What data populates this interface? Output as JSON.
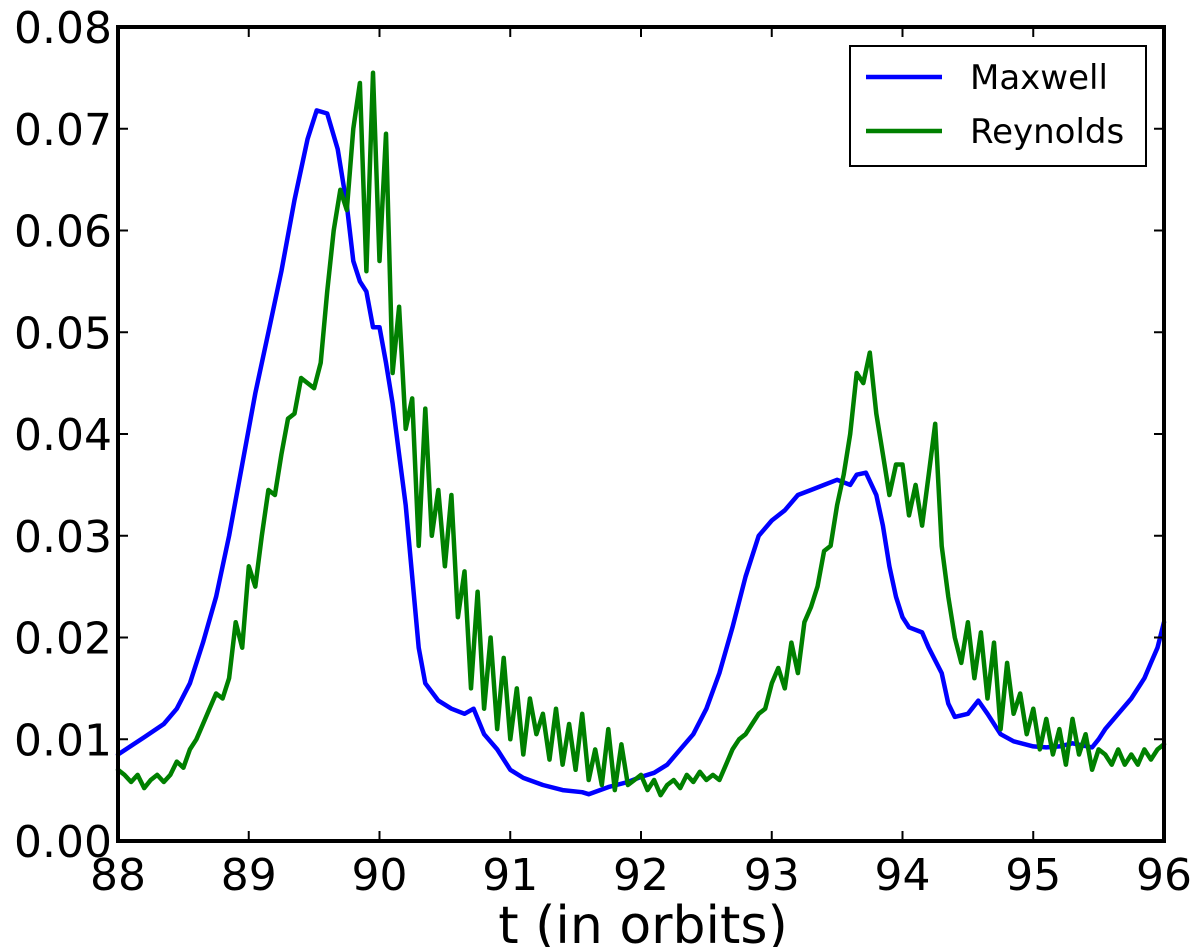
{
  "chart_data": {
    "type": "line",
    "title": "",
    "xlabel": "t (in orbits)",
    "ylabel": "",
    "xlim": [
      88,
      96
    ],
    "ylim": [
      0.0,
      0.08
    ],
    "xticks": [
      "88",
      "89",
      "90",
      "91",
      "92",
      "93",
      "94",
      "95",
      "96"
    ],
    "yticks": [
      "0.00",
      "0.01",
      "0.02",
      "0.03",
      "0.04",
      "0.05",
      "0.06",
      "0.07",
      "0.08"
    ],
    "grid": false,
    "legend_position": "top-right",
    "series": [
      {
        "name": "Maxwell",
        "color": "#0000ff",
        "points": [
          [
            88.0,
            0.0085
          ],
          [
            88.2,
            0.0102
          ],
          [
            88.35,
            0.0115
          ],
          [
            88.45,
            0.013
          ],
          [
            88.55,
            0.0155
          ],
          [
            88.65,
            0.0195
          ],
          [
            88.75,
            0.024
          ],
          [
            88.85,
            0.03
          ],
          [
            88.95,
            0.037
          ],
          [
            89.05,
            0.044
          ],
          [
            89.15,
            0.05
          ],
          [
            89.25,
            0.056
          ],
          [
            89.35,
            0.063
          ],
          [
            89.45,
            0.069
          ],
          [
            89.52,
            0.0718
          ],
          [
            89.6,
            0.0715
          ],
          [
            89.68,
            0.068
          ],
          [
            89.75,
            0.0625
          ],
          [
            89.8,
            0.057
          ],
          [
            89.85,
            0.055
          ],
          [
            89.9,
            0.054
          ],
          [
            89.95,
            0.0505
          ],
          [
            90.0,
            0.0505
          ],
          [
            90.05,
            0.047
          ],
          [
            90.1,
            0.043
          ],
          [
            90.15,
            0.038
          ],
          [
            90.2,
            0.033
          ],
          [
            90.25,
            0.026
          ],
          [
            90.3,
            0.019
          ],
          [
            90.35,
            0.0155
          ],
          [
            90.45,
            0.0138
          ],
          [
            90.55,
            0.013
          ],
          [
            90.65,
            0.0125
          ],
          [
            90.72,
            0.013
          ],
          [
            90.8,
            0.0105
          ],
          [
            90.9,
            0.009
          ],
          [
            91.0,
            0.007
          ],
          [
            91.1,
            0.0062
          ],
          [
            91.25,
            0.0055
          ],
          [
            91.4,
            0.005
          ],
          [
            91.55,
            0.0048
          ],
          [
            91.6,
            0.0046
          ],
          [
            91.75,
            0.0053
          ],
          [
            91.9,
            0.0058
          ],
          [
            92.0,
            0.0063
          ],
          [
            92.1,
            0.0067
          ],
          [
            92.2,
            0.0075
          ],
          [
            92.3,
            0.009
          ],
          [
            92.4,
            0.0105
          ],
          [
            92.5,
            0.013
          ],
          [
            92.6,
            0.0165
          ],
          [
            92.7,
            0.021
          ],
          [
            92.8,
            0.026
          ],
          [
            92.9,
            0.03
          ],
          [
            93.0,
            0.0315
          ],
          [
            93.1,
            0.0325
          ],
          [
            93.2,
            0.034
          ],
          [
            93.3,
            0.0345
          ],
          [
            93.4,
            0.035
          ],
          [
            93.5,
            0.0355
          ],
          [
            93.6,
            0.035
          ],
          [
            93.65,
            0.036
          ],
          [
            93.72,
            0.0362
          ],
          [
            93.8,
            0.034
          ],
          [
            93.85,
            0.031
          ],
          [
            93.9,
            0.027
          ],
          [
            93.95,
            0.024
          ],
          [
            94.0,
            0.022
          ],
          [
            94.05,
            0.021
          ],
          [
            94.15,
            0.0205
          ],
          [
            94.2,
            0.019
          ],
          [
            94.3,
            0.0165
          ],
          [
            94.35,
            0.0135
          ],
          [
            94.4,
            0.0122
          ],
          [
            94.5,
            0.0125
          ],
          [
            94.58,
            0.0138
          ],
          [
            94.65,
            0.0125
          ],
          [
            94.75,
            0.0105
          ],
          [
            94.85,
            0.0098
          ],
          [
            95.0,
            0.0093
          ],
          [
            95.1,
            0.0092
          ],
          [
            95.2,
            0.0093
          ],
          [
            95.3,
            0.0096
          ],
          [
            95.45,
            0.0092
          ],
          [
            95.5,
            0.01
          ],
          [
            95.55,
            0.011
          ],
          [
            95.65,
            0.0125
          ],
          [
            95.75,
            0.014
          ],
          [
            95.85,
            0.016
          ],
          [
            95.9,
            0.0175
          ],
          [
            95.95,
            0.019
          ],
          [
            96.0,
            0.0215
          ]
        ]
      },
      {
        "name": "Reynolds",
        "color": "#008000",
        "points": [
          [
            88.0,
            0.007
          ],
          [
            88.05,
            0.0065
          ],
          [
            88.1,
            0.0058
          ],
          [
            88.15,
            0.0065
          ],
          [
            88.2,
            0.0052
          ],
          [
            88.25,
            0.006
          ],
          [
            88.3,
            0.0065
          ],
          [
            88.35,
            0.0058
          ],
          [
            88.4,
            0.0065
          ],
          [
            88.45,
            0.0078
          ],
          [
            88.5,
            0.0072
          ],
          [
            88.55,
            0.009
          ],
          [
            88.6,
            0.01
          ],
          [
            88.65,
            0.0115
          ],
          [
            88.7,
            0.013
          ],
          [
            88.75,
            0.0145
          ],
          [
            88.8,
            0.014
          ],
          [
            88.85,
            0.016
          ],
          [
            88.9,
            0.0215
          ],
          [
            88.95,
            0.019
          ],
          [
            89.0,
            0.027
          ],
          [
            89.05,
            0.025
          ],
          [
            89.1,
            0.03
          ],
          [
            89.15,
            0.0345
          ],
          [
            89.2,
            0.034
          ],
          [
            89.25,
            0.038
          ],
          [
            89.3,
            0.0415
          ],
          [
            89.35,
            0.042
          ],
          [
            89.4,
            0.0455
          ],
          [
            89.45,
            0.045
          ],
          [
            89.5,
            0.0445
          ],
          [
            89.55,
            0.047
          ],
          [
            89.6,
            0.054
          ],
          [
            89.65,
            0.06
          ],
          [
            89.7,
            0.064
          ],
          [
            89.75,
            0.062
          ],
          [
            89.8,
            0.07
          ],
          [
            89.85,
            0.0745
          ],
          [
            89.9,
            0.056
          ],
          [
            89.95,
            0.0755
          ],
          [
            90.0,
            0.057
          ],
          [
            90.05,
            0.0695
          ],
          [
            90.1,
            0.046
          ],
          [
            90.15,
            0.0525
          ],
          [
            90.2,
            0.0405
          ],
          [
            90.25,
            0.0435
          ],
          [
            90.3,
            0.029
          ],
          [
            90.35,
            0.0425
          ],
          [
            90.4,
            0.03
          ],
          [
            90.45,
            0.0345
          ],
          [
            90.5,
            0.027
          ],
          [
            90.55,
            0.034
          ],
          [
            90.6,
            0.022
          ],
          [
            90.65,
            0.0265
          ],
          [
            90.7,
            0.015
          ],
          [
            90.75,
            0.0245
          ],
          [
            90.8,
            0.013
          ],
          [
            90.85,
            0.02
          ],
          [
            90.9,
            0.011
          ],
          [
            90.95,
            0.018
          ],
          [
            91.0,
            0.01
          ],
          [
            91.05,
            0.015
          ],
          [
            91.1,
            0.0085
          ],
          [
            91.15,
            0.014
          ],
          [
            91.2,
            0.0105
          ],
          [
            91.25,
            0.0125
          ],
          [
            91.3,
            0.008
          ],
          [
            91.35,
            0.013
          ],
          [
            91.4,
            0.0075
          ],
          [
            91.45,
            0.0115
          ],
          [
            91.5,
            0.007
          ],
          [
            91.55,
            0.0125
          ],
          [
            91.6,
            0.006
          ],
          [
            91.65,
            0.009
          ],
          [
            91.7,
            0.0055
          ],
          [
            91.75,
            0.011
          ],
          [
            91.8,
            0.005
          ],
          [
            91.85,
            0.0095
          ],
          [
            91.9,
            0.0055
          ],
          [
            91.95,
            0.006
          ],
          [
            92.0,
            0.0065
          ],
          [
            92.05,
            0.005
          ],
          [
            92.1,
            0.006
          ],
          [
            92.15,
            0.0045
          ],
          [
            92.2,
            0.0055
          ],
          [
            92.25,
            0.006
          ],
          [
            92.3,
            0.0052
          ],
          [
            92.35,
            0.0065
          ],
          [
            92.4,
            0.0058
          ],
          [
            92.45,
            0.0068
          ],
          [
            92.5,
            0.006
          ],
          [
            92.55,
            0.0065
          ],
          [
            92.6,
            0.006
          ],
          [
            92.65,
            0.0075
          ],
          [
            92.7,
            0.009
          ],
          [
            92.75,
            0.01
          ],
          [
            92.8,
            0.0105
          ],
          [
            92.85,
            0.0115
          ],
          [
            92.9,
            0.0125
          ],
          [
            92.95,
            0.013
          ],
          [
            93.0,
            0.0155
          ],
          [
            93.05,
            0.017
          ],
          [
            93.1,
            0.015
          ],
          [
            93.15,
            0.0195
          ],
          [
            93.2,
            0.0165
          ],
          [
            93.25,
            0.0215
          ],
          [
            93.3,
            0.023
          ],
          [
            93.35,
            0.025
          ],
          [
            93.4,
            0.0285
          ],
          [
            93.45,
            0.029
          ],
          [
            93.5,
            0.033
          ],
          [
            93.55,
            0.036
          ],
          [
            93.6,
            0.04
          ],
          [
            93.65,
            0.046
          ],
          [
            93.7,
            0.045
          ],
          [
            93.75,
            0.048
          ],
          [
            93.8,
            0.042
          ],
          [
            93.85,
            0.038
          ],
          [
            93.9,
            0.034
          ],
          [
            93.95,
            0.037
          ],
          [
            94.0,
            0.037
          ],
          [
            94.05,
            0.032
          ],
          [
            94.1,
            0.035
          ],
          [
            94.15,
            0.031
          ],
          [
            94.2,
            0.036
          ],
          [
            94.25,
            0.041
          ],
          [
            94.3,
            0.029
          ],
          [
            94.35,
            0.024
          ],
          [
            94.4,
            0.02
          ],
          [
            94.45,
            0.0175
          ],
          [
            94.5,
            0.0215
          ],
          [
            94.55,
            0.016
          ],
          [
            94.6,
            0.0205
          ],
          [
            94.65,
            0.014
          ],
          [
            94.7,
            0.0195
          ],
          [
            94.75,
            0.011
          ],
          [
            94.8,
            0.0175
          ],
          [
            94.85,
            0.0125
          ],
          [
            94.9,
            0.0145
          ],
          [
            94.95,
            0.0105
          ],
          [
            95.0,
            0.013
          ],
          [
            95.05,
            0.009
          ],
          [
            95.1,
            0.012
          ],
          [
            95.15,
            0.0085
          ],
          [
            95.2,
            0.011
          ],
          [
            95.25,
            0.0075
          ],
          [
            95.3,
            0.012
          ],
          [
            95.35,
            0.0085
          ],
          [
            95.4,
            0.0105
          ],
          [
            95.45,
            0.007
          ],
          [
            95.5,
            0.009
          ],
          [
            95.55,
            0.0085
          ],
          [
            95.6,
            0.0075
          ],
          [
            95.65,
            0.009
          ],
          [
            95.7,
            0.0075
          ],
          [
            95.75,
            0.0085
          ],
          [
            95.8,
            0.0075
          ],
          [
            95.85,
            0.009
          ],
          [
            95.9,
            0.008
          ],
          [
            95.95,
            0.009
          ],
          [
            96.0,
            0.0095
          ]
        ]
      }
    ]
  }
}
